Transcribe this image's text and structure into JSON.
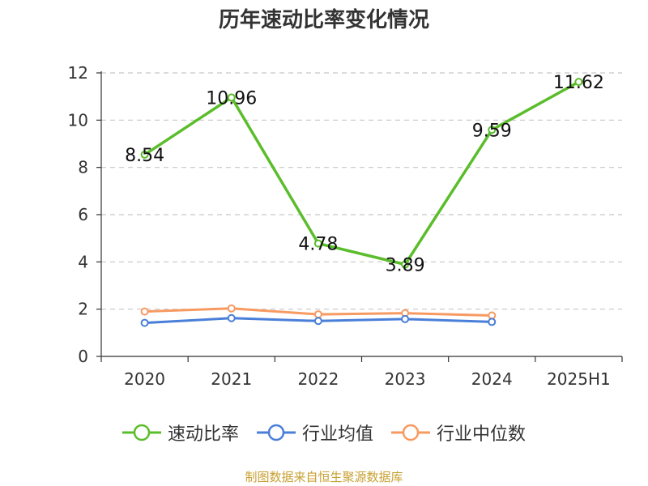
{
  "chart_data": {
    "type": "line",
    "title": "历年速动比率变化情况",
    "categories": [
      "2020",
      "2021",
      "2022",
      "2023",
      "2024",
      "2025H1"
    ],
    "ylim": [
      0,
      12
    ],
    "yticks": [
      0,
      2,
      4,
      6,
      8,
      10,
      12
    ],
    "grid": true,
    "legend_position": "bottom",
    "series": [
      {
        "name": "速动比率",
        "color": "#5bbd2b",
        "values": [
          8.54,
          10.96,
          4.78,
          3.89,
          9.59,
          11.62
        ],
        "labels": [
          "8.54",
          "10.96",
          "4.78",
          "3.89",
          "9.59",
          "11.62"
        ]
      },
      {
        "name": "行业均值",
        "color": "#4a7fd9",
        "values": [
          1.42,
          1.62,
          1.5,
          1.58,
          1.46,
          null
        ]
      },
      {
        "name": "行业中位数",
        "color": "#f79a62",
        "values": [
          1.9,
          2.03,
          1.78,
          1.83,
          1.73,
          null
        ]
      }
    ]
  },
  "source": "制图数据来自恒生聚源数据库"
}
